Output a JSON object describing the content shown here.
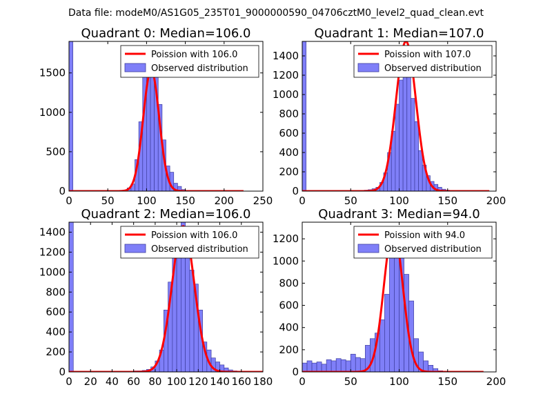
{
  "suptitle": "Data file: modeM0/AS1G05_235T01_9000000590_04706cztM0_level2_quad_clean.evt",
  "colors": {
    "hist_fill": "#7f7ff8",
    "hist_edge": "#3d3d9e",
    "fit_line": "#ff0000"
  },
  "chart_data": [
    {
      "type": "bar",
      "title": "Quadrant 0: Median=106.0",
      "legend": [
        "Poission with 106.0",
        "Observed distribution"
      ],
      "legend_position": "top-right",
      "xlim": [
        0,
        250
      ],
      "ylim": [
        0,
        1900
      ],
      "xticks": [
        0,
        50,
        100,
        150,
        200,
        250
      ],
      "yticks": [
        0,
        500,
        1000,
        1500
      ],
      "xticklabels": [
        "0",
        "50",
        "100",
        "150",
        "200",
        "250"
      ],
      "yticklabels": [
        "0",
        "500",
        "1000",
        "1500"
      ],
      "bin_width": 5,
      "bins": [
        [
          0,
          1900
        ],
        [
          65,
          5
        ],
        [
          70,
          15
        ],
        [
          75,
          40
        ],
        [
          80,
          90
        ],
        [
          85,
          400
        ],
        [
          90,
          880
        ],
        [
          95,
          1480
        ],
        [
          100,
          1600
        ],
        [
          105,
          1500
        ],
        [
          110,
          1450
        ],
        [
          115,
          1100
        ],
        [
          120,
          650
        ],
        [
          125,
          320
        ],
        [
          130,
          240
        ],
        [
          135,
          100
        ],
        [
          140,
          60
        ],
        [
          145,
          20
        ],
        [
          150,
          10
        ]
      ],
      "fit": {
        "center": 106,
        "sigma": 10.3,
        "peak": 1540,
        "x_range": [
          0,
          225
        ]
      }
    },
    {
      "type": "bar",
      "title": "Quadrant 1: Median=107.0",
      "legend": [
        "Poission with 107.0",
        "Observed distribution"
      ],
      "legend_position": "top-right",
      "xlim": [
        0,
        200
      ],
      "ylim": [
        0,
        1550
      ],
      "xticks": [
        0,
        50,
        100,
        150,
        200
      ],
      "yticks": [
        0,
        200,
        400,
        600,
        800,
        1000,
        1200,
        1400
      ],
      "xticklabels": [
        "0",
        "50",
        "100",
        "150",
        "200"
      ],
      "yticklabels": [
        "0",
        "200",
        "400",
        "600",
        "800",
        "1000",
        "1200",
        "1400"
      ],
      "bin_width": 4,
      "bins": [
        [
          0,
          1550
        ],
        [
          60,
          5
        ],
        [
          64,
          10
        ],
        [
          68,
          15
        ],
        [
          72,
          25
        ],
        [
          76,
          40
        ],
        [
          80,
          90
        ],
        [
          84,
          190
        ],
        [
          88,
          400
        ],
        [
          92,
          620
        ],
        [
          96,
          900
        ],
        [
          100,
          1150
        ],
        [
          104,
          1300
        ],
        [
          108,
          1250
        ],
        [
          112,
          960
        ],
        [
          116,
          720
        ],
        [
          120,
          420
        ],
        [
          124,
          270
        ],
        [
          128,
          160
        ],
        [
          132,
          100
        ],
        [
          136,
          70
        ],
        [
          140,
          40
        ],
        [
          144,
          20
        ],
        [
          148,
          10
        ]
      ],
      "fit": {
        "center": 107,
        "sigma": 10.3,
        "peak": 1550,
        "x_range": [
          0,
          193
        ]
      }
    },
    {
      "type": "bar",
      "title": "Quadrant 2: Median=106.0",
      "legend": [
        "Poission with 106.0",
        "Observed distribution"
      ],
      "legend_position": "top-right",
      "xlim": [
        0,
        180
      ],
      "ylim": [
        0,
        1500
      ],
      "xticks": [
        0,
        20,
        40,
        60,
        80,
        100,
        120,
        140,
        160,
        180
      ],
      "yticks": [
        0,
        200,
        400,
        600,
        800,
        1000,
        1200,
        1400
      ],
      "xticklabels": [
        "0",
        "20",
        "40",
        "60",
        "80",
        "100",
        "120",
        "140",
        "160",
        "180"
      ],
      "yticklabels": [
        "0",
        "200",
        "400",
        "600",
        "800",
        "1000",
        "1200",
        "1400"
      ],
      "bin_width": 4,
      "bins": [
        [
          0,
          1500
        ],
        [
          60,
          10
        ],
        [
          64,
          10
        ],
        [
          68,
          15
        ],
        [
          72,
          25
        ],
        [
          76,
          50
        ],
        [
          80,
          110
        ],
        [
          84,
          220
        ],
        [
          88,
          620
        ],
        [
          92,
          900
        ],
        [
          96,
          1340
        ],
        [
          100,
          1380
        ],
        [
          104,
          1500
        ],
        [
          108,
          1300
        ],
        [
          112,
          1020
        ],
        [
          116,
          880
        ],
        [
          120,
          620
        ],
        [
          124,
          300
        ],
        [
          128,
          220
        ],
        [
          132,
          140
        ],
        [
          136,
          100
        ],
        [
          140,
          70
        ],
        [
          144,
          40
        ],
        [
          148,
          20
        ],
        [
          152,
          10
        ]
      ],
      "fit": {
        "center": 106,
        "sigma": 10.3,
        "peak": 1460,
        "x_range": [
          0,
          181
        ]
      }
    },
    {
      "type": "bar",
      "title": "Quadrant 3: Median=94.0",
      "legend": [
        "Poission with 94.0",
        "Observed distribution"
      ],
      "legend_position": "top-right",
      "xlim": [
        0,
        200
      ],
      "ylim": [
        0,
        1350
      ],
      "xticks": [
        0,
        50,
        100,
        150,
        200
      ],
      "yticks": [
        0,
        200,
        400,
        600,
        800,
        1000,
        1200
      ],
      "xticklabels": [
        "0",
        "50",
        "100",
        "150",
        "200"
      ],
      "yticklabels": [
        "0",
        "200",
        "400",
        "600",
        "800",
        "1000",
        "1200"
      ],
      "bin_width": 5,
      "bins": [
        [
          0,
          80
        ],
        [
          5,
          100
        ],
        [
          10,
          80
        ],
        [
          15,
          90
        ],
        [
          20,
          70
        ],
        [
          25,
          110
        ],
        [
          30,
          100
        ],
        [
          35,
          120
        ],
        [
          40,
          110
        ],
        [
          45,
          100
        ],
        [
          50,
          160
        ],
        [
          55,
          130
        ],
        [
          60,
          120
        ],
        [
          65,
          240
        ],
        [
          70,
          300
        ],
        [
          75,
          350
        ],
        [
          80,
          470
        ],
        [
          85,
          700
        ],
        [
          90,
          1150
        ],
        [
          95,
          1250
        ],
        [
          100,
          1180
        ],
        [
          105,
          880
        ],
        [
          110,
          640
        ],
        [
          115,
          300
        ],
        [
          120,
          180
        ],
        [
          125,
          100
        ],
        [
          130,
          60
        ],
        [
          135,
          30
        ],
        [
          140,
          10
        ]
      ],
      "fit": {
        "center": 94,
        "sigma": 9.7,
        "peak": 1290,
        "x_range": [
          0,
          187
        ]
      }
    }
  ]
}
